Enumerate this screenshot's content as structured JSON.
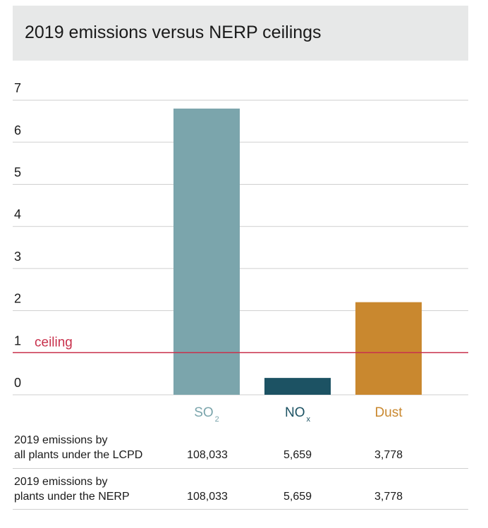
{
  "chart_data": {
    "type": "bar",
    "title": "2019 emissions versus NERP ceilings",
    "categories": [
      {
        "label": "SO",
        "sub": "2"
      },
      {
        "label": "NO",
        "sub": "x"
      },
      {
        "label": "Dust",
        "sub": ""
      }
    ],
    "values": [
      6.8,
      0.4,
      2.2
    ],
    "colors": [
      "#7ba5ac",
      "#1c5263",
      "#c9882f"
    ],
    "category_label_colors": [
      "#7ba5ac",
      "#1c5263",
      "#c9882f"
    ],
    "ylim": [
      0,
      7
    ],
    "yticks": [
      "0",
      "1",
      "2",
      "3",
      "4",
      "5",
      "6",
      "7"
    ],
    "grid": true,
    "reference_line": {
      "value": 1,
      "label": "ceiling",
      "color": "#c8314c"
    }
  },
  "table": {
    "rows": [
      {
        "label": [
          "2019 emissions by",
          "all plants under the LCPD"
        ],
        "values": [
          "108,033",
          "5,659",
          "3,778"
        ]
      },
      {
        "label": [
          "2019 emissions by",
          "plants under the NERP"
        ],
        "values": [
          "108,033",
          "5,659",
          "3,778"
        ]
      }
    ]
  }
}
